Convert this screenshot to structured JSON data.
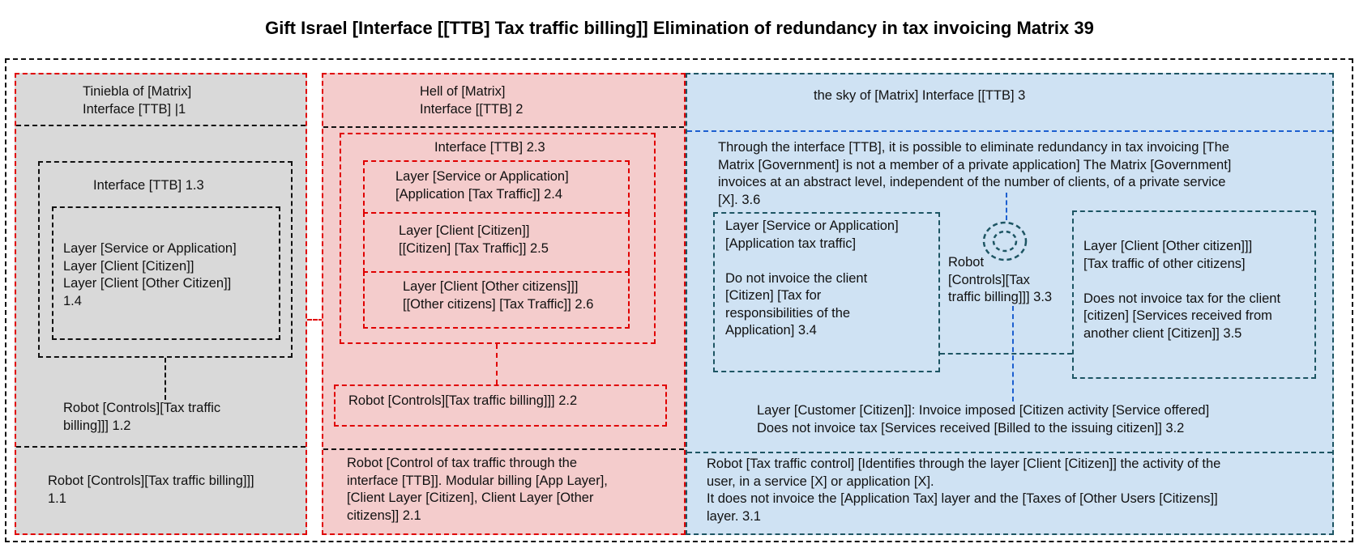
{
  "title": "Gift Israel [Interface [[TTB] Tax traffic billing]] Elimination of redundancy in tax invoicing Matrix 39",
  "colors": {
    "tiniebla_fill": "#d9d9d9",
    "hell_fill": "#f4cccc",
    "sky_fill": "#cfe2f3",
    "red_border": "#e00000",
    "teal_border": "#1d5563",
    "blue_line": "#1c5fd0"
  },
  "tiniebla": {
    "header": "Tiniebla of [Matrix]\nInterface [TTB] |1",
    "interface_label": "Interface [TTB] 1.3",
    "layers": "Layer [Service or Application]\nLayer [Client [Citizen]]\nLayer [Client [Other Citizen]]\n1.4",
    "robot_controls": "Robot [Controls][Tax traffic\nbilling]]] 1.2",
    "robot_footer": "Robot [Controls][Tax traffic billing]]]\n1.1"
  },
  "hell": {
    "header": "Hell of [Matrix]\nInterface [[TTB] 2",
    "interface_label": "Interface [TTB] 2.3",
    "layer_service": "Layer [Service or Application]\n[Application [Tax Traffic]] 2.4",
    "layer_client": "Layer [Client [Citizen]]\n[[Citizen] [Tax Traffic]] 2.5",
    "layer_other": "Layer [Client [Other citizens]]]\n[[Other citizens] [Tax Traffic]] 2.6",
    "robot_controls": "Robot [Controls][Tax traffic billing]]] 2.2",
    "robot_footer": "Robot [Control of tax traffic through the\ninterface [TTB]]. Modular billing [App Layer],\n[Client Layer [Citizen], Client Layer [Other\ncitizens]] 2.1"
  },
  "sky": {
    "header": "the sky of [Matrix]  Interface [[TTB]  3",
    "description": "Through the interface [TTB], it is possible to eliminate redundancy in tax invoicing [The\nMatrix [Government] is not a member of a private application] The Matrix [Government]\ninvoices at an abstract level, independent of the number of clients, of a private service\n[X]. 3.6",
    "layer_service": "Layer [Service or Application]\n[Application tax traffic]\n\nDo not invoice the client\n[Citizen] [Tax for\nresponsibilities of the\nApplication] 3.4",
    "robot": "Robot\n[Controls][Tax\ntraffic billing]]] 3.3",
    "layer_other": "Layer [Client [Other citizen]]]\n[Tax traffic of other citizens]\n\nDoes not invoice tax for the client\n[citizen] [Services received from\nanother client [Citizen]] 3.5",
    "layer_customer": "Layer [Customer [Citizen]]: Invoice imposed [Citizen activity [Service offered]\nDoes not invoice tax [Services received [Billed to the issuing citizen]] 3.2",
    "robot_footer": "Robot [Tax traffic control] [Identifies through the layer [Client [Citizen]] the activity of the\nuser, in a service [X] or application [X].\nIt does not invoice the [Application Tax] layer and the [Taxes of [Other Users [Citizens]]\nlayer. 3.1"
  }
}
